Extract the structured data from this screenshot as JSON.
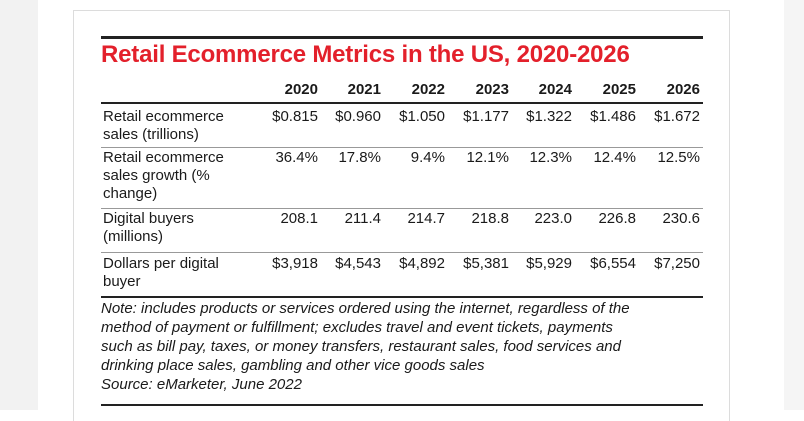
{
  "header": {
    "title": "Retail Ecommerce Metrics in the US, 2020-2026"
  },
  "table": {
    "columns": [
      "2020",
      "2021",
      "2022",
      "2023",
      "2024",
      "2025",
      "2026"
    ],
    "rows": [
      {
        "label": "Retail ecommerce sales (trillions)",
        "values": [
          "$0.815",
          "$0.960",
          "$1.050",
          "$1.177",
          "$1.322",
          "$1.486",
          "$1.672"
        ]
      },
      {
        "label": "Retail ecommerce sales growth (% change)",
        "values": [
          "36.4%",
          "17.8%",
          "9.4%",
          "12.1%",
          "12.3%",
          "12.4%",
          "12.5%"
        ]
      },
      {
        "label": "Digital buyers (millions)",
        "values": [
          "208.1",
          "211.4",
          "214.7",
          "218.8",
          "223.0",
          "226.8",
          "230.6"
        ]
      },
      {
        "label": "Dollars per digital buyer",
        "values": [
          "$3,918",
          "$4,543",
          "$4,892",
          "$5,381",
          "$5,929",
          "$6,554",
          "$7,250"
        ]
      }
    ]
  },
  "note": {
    "lines": [
      "Note: includes products or services ordered using the internet, regardless of the",
      "method of payment or fulfillment; excludes travel and event tickets, payments",
      "such as bill pay, taxes, or money transfers, restaurant sales, food services and",
      "drinking place sales, gambling and other vice goods sales"
    ],
    "source": "Source: eMarketer, June 2022"
  }
}
